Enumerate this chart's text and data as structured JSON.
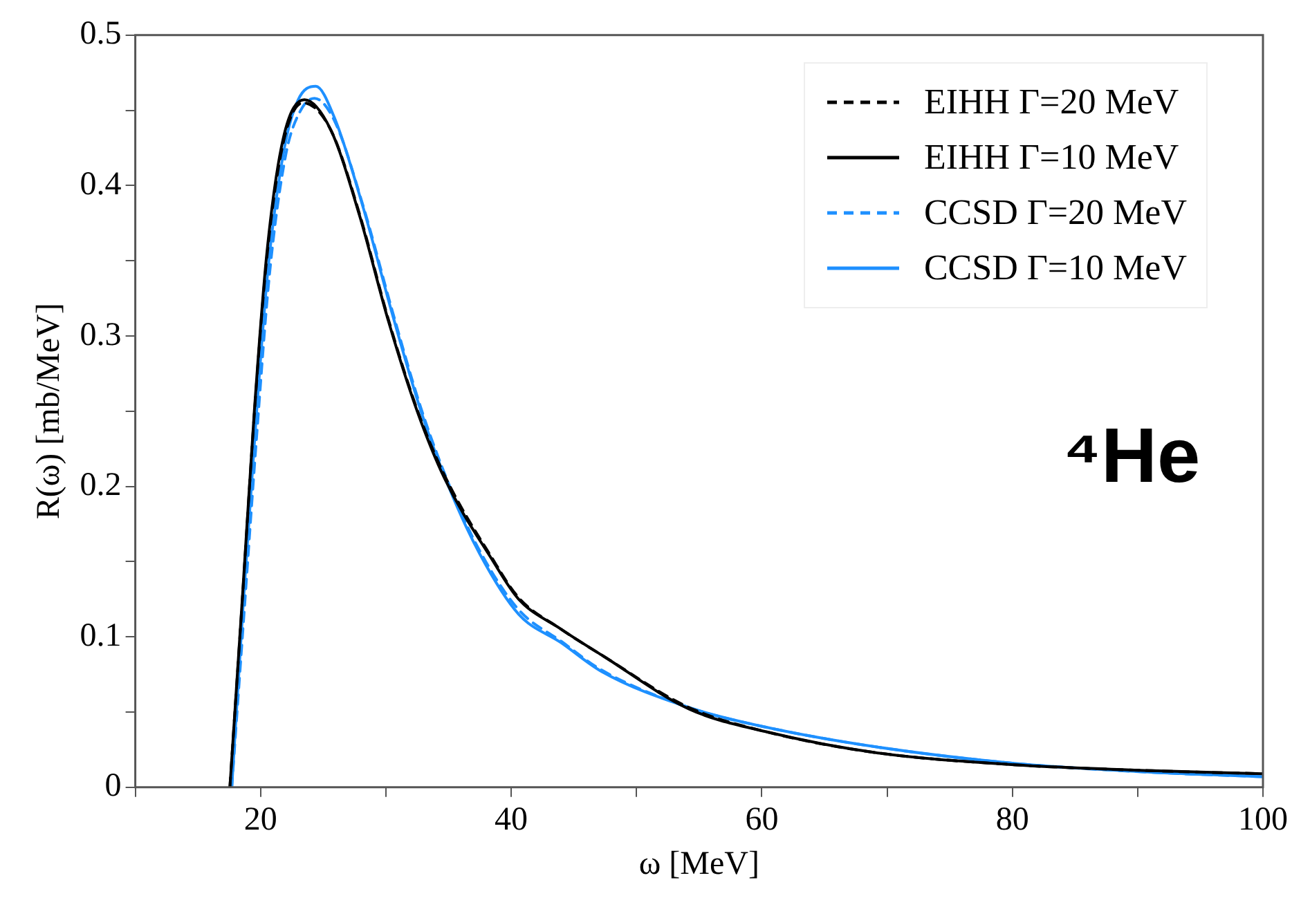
{
  "chart_data": {
    "type": "line",
    "xlabel": "ω [MeV]",
    "ylabel": "R(ω) [mb/MeV]",
    "xlim": [
      10,
      100
    ],
    "xticks": [
      {
        "value": 10,
        "label": null
      },
      20,
      {
        "value": 30,
        "label": null
      },
      40,
      {
        "value": 50,
        "label": null
      },
      60,
      {
        "value": 70,
        "label": null
      },
      80,
      {
        "value": 90,
        "label": null
      },
      100
    ],
    "ylim": [
      0,
      0.5
    ],
    "yticks": [
      0,
      {
        "value": 0.05,
        "label": null
      },
      0.1,
      {
        "value": 0.15,
        "label": null
      },
      0.2,
      {
        "value": 0.25,
        "label": null
      },
      0.3,
      {
        "value": 0.35,
        "label": null
      },
      0.4,
      {
        "value": 0.45,
        "label": null
      },
      0.5
    ],
    "grid": false,
    "legend": "top right",
    "marker": "none",
    "annotations": [
      "⁴He"
    ],
    "series": [
      {
        "name": "EIHH Γ=20 MeV",
        "color": "#000000",
        "line_style": "dashed",
        "x": [
          17.55,
          18.57,
          19.5,
          20.5,
          21.8,
          23.4,
          25.6,
          27.9,
          30.2,
          32.5,
          34.7,
          38.5,
          40.6,
          44,
          47.2,
          54.2,
          60.3,
          69.1,
          80.1,
          91.1,
          100
        ],
        "values": [
          0,
          0.128,
          0.248,
          0.352,
          0.428,
          0.455,
          0.437,
          0.381,
          0.311,
          0.251,
          0.207,
          0.152,
          0.126,
          0.105,
          0.088,
          0.053,
          0.037,
          0.023,
          0.015,
          0.011,
          0.009
        ]
      },
      {
        "name": "EIHH Γ=10 MeV",
        "color": "#000000",
        "line_style": "solid",
        "x": [
          17.55,
          18.57,
          19.5,
          20.5,
          21.8,
          23.5,
          25.6,
          27.9,
          30.2,
          32.5,
          34.7,
          38.5,
          40.6,
          44,
          47.2,
          54.2,
          60.3,
          69.1,
          80.1,
          91.1,
          100
        ],
        "values": [
          0,
          0.129,
          0.25,
          0.355,
          0.431,
          0.457,
          0.437,
          0.38,
          0.31,
          0.25,
          0.205,
          0.151,
          0.125,
          0.105,
          0.088,
          0.052,
          0.037,
          0.023,
          0.015,
          0.011,
          0.009
        ]
      },
      {
        "name": "CCSD Γ=20 MeV",
        "color": "#1e90ff",
        "line_style": "dashed",
        "x": [
          17.7,
          18.7,
          19.7,
          20.7,
          22.0,
          23.2,
          24.3,
          25.9,
          28.2,
          30.5,
          32.8,
          35.0,
          37.5,
          40.6,
          44,
          47.2,
          54.2,
          60.3,
          69.0,
          80.0,
          91.0,
          100
        ],
        "values": [
          0,
          0.118,
          0.235,
          0.34,
          0.42,
          0.45,
          0.458,
          0.443,
          0.386,
          0.317,
          0.252,
          0.202,
          0.157,
          0.118,
          0.097,
          0.078,
          0.053,
          0.04,
          0.027,
          0.016,
          0.01,
          0.007
        ]
      },
      {
        "name": "CCSD Γ=10 MeV",
        "color": "#1e90ff",
        "line_style": "solid",
        "x": [
          17.7,
          18.6,
          19.6,
          20.6,
          21.9,
          23.0,
          24.4,
          25.9,
          28.2,
          30.5,
          32.8,
          35.0,
          37.5,
          40.6,
          44,
          47.2,
          54.2,
          60.3,
          69.0,
          80.0,
          91.0,
          100
        ],
        "values": [
          0,
          0.12,
          0.24,
          0.345,
          0.425,
          0.457,
          0.466,
          0.445,
          0.385,
          0.315,
          0.25,
          0.2,
          0.155,
          0.115,
          0.096,
          0.077,
          0.053,
          0.04,
          0.027,
          0.016,
          0.01,
          0.007
        ]
      }
    ]
  }
}
